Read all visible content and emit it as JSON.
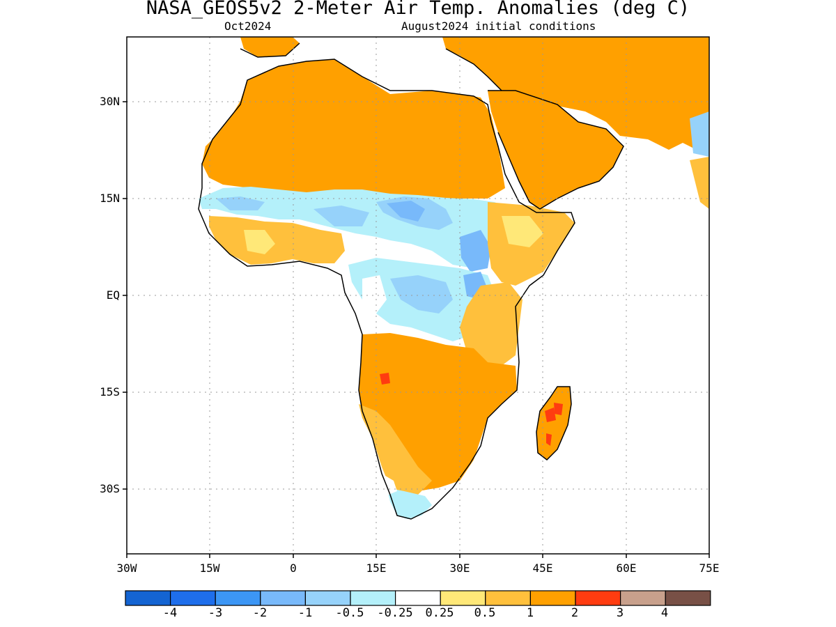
{
  "title": "NASA_GEOS5v2 2-Meter Air Temp. Anomalies (deg C)",
  "subtitle_left": "Oct2024",
  "subtitle_right": "August2024 initial conditions",
  "lat_labels": [
    "30N",
    "15N",
    "EQ",
    "15S",
    "30S"
  ],
  "lon_labels": [
    "30W",
    "15W",
    "0",
    "15E",
    "30E",
    "45E",
    "60E",
    "75E"
  ],
  "colorbar": {
    "colors": [
      "#1464d2",
      "#1e6eeb",
      "#3c96f5",
      "#78b9fa",
      "#96d2fa",
      "#b4f0fa",
      "#ffffff",
      "#ffe878",
      "#ffc03c",
      "#ffa000",
      "#ff3c10",
      "#c8a08c",
      "#785046"
    ],
    "labels": [
      "-4",
      "-3",
      "-2",
      "-1",
      "-0.5",
      "-0.25",
      "0.25",
      "0.5",
      "1",
      "2",
      "3",
      "4"
    ]
  }
}
